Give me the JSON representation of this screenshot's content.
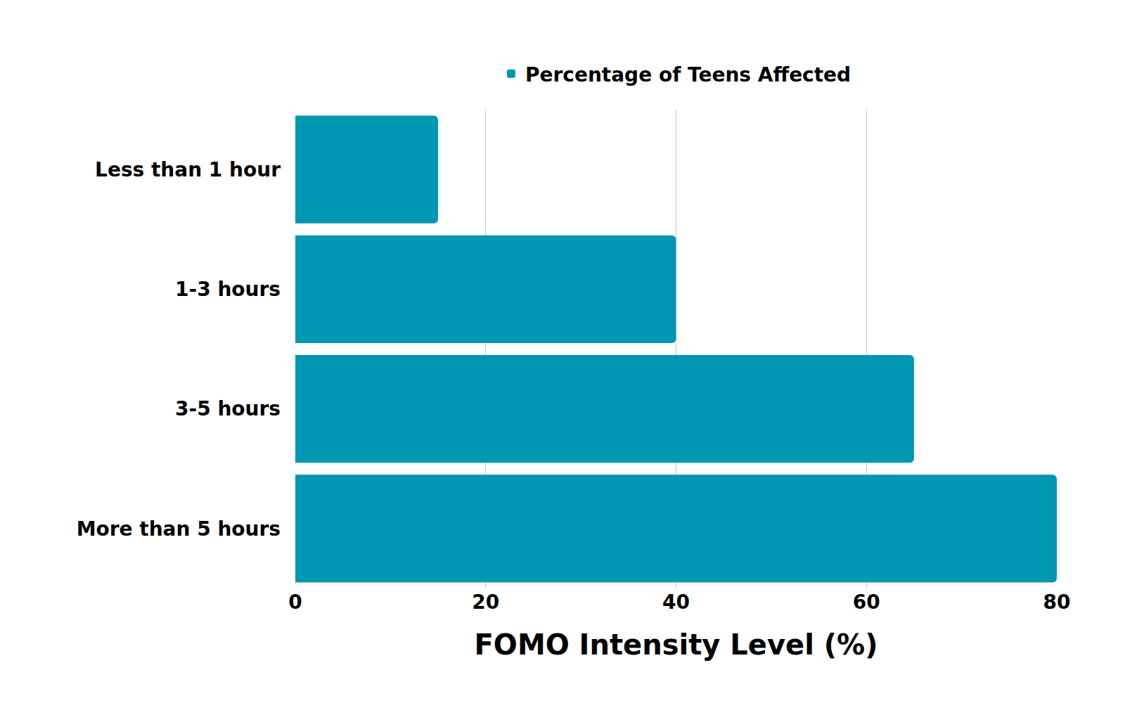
{
  "chart_data": {
    "type": "bar",
    "orientation": "horizontal",
    "categories": [
      "Less than 1 hour",
      "1-3 hours",
      "3-5 hours",
      "More than 5 hours"
    ],
    "series": [
      {
        "name": "Percentage of Teens Affected",
        "color": "#0097b2",
        "values": [
          15,
          40,
          65,
          80
        ]
      }
    ],
    "x_label": "FOMO Intensity Level (%)",
    "xlim": [
      0,
      80
    ],
    "xticks": [
      0,
      20,
      40,
      60,
      80
    ],
    "grid": true,
    "legend": "top"
  }
}
